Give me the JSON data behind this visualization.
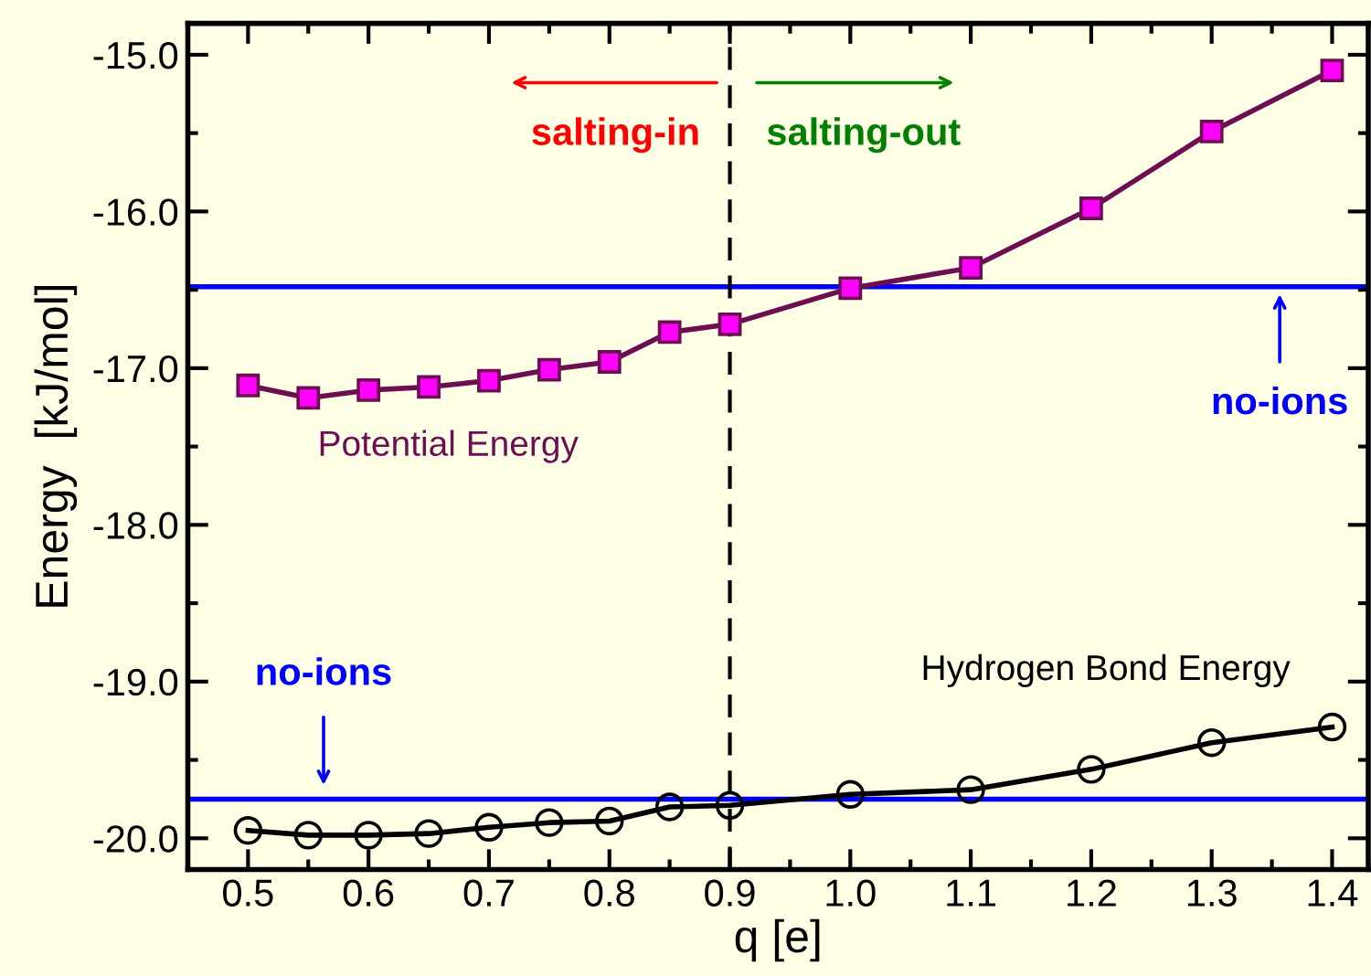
{
  "chart_data": {
    "type": "line",
    "xlabel": "q [e]",
    "ylabel": "Energy  [kJ/mol]",
    "x": [
      0.5,
      0.55,
      0.6,
      0.65,
      0.7,
      0.75,
      0.8,
      0.85,
      0.9,
      1.0,
      1.1,
      1.2,
      1.3,
      1.4
    ],
    "series": [
      {
        "name": "Potential Energy",
        "color": "#6e0e52",
        "marker": "square",
        "values": [
          -17.11,
          -17.19,
          -17.14,
          -17.12,
          -17.08,
          -17.01,
          -16.96,
          -16.77,
          -16.72,
          -16.49,
          -16.36,
          -15.98,
          -15.49,
          -15.1
        ]
      },
      {
        "name": "Hydrogen Bond Energy",
        "color": "#000000",
        "marker": "circle",
        "values": [
          -19.95,
          -19.98,
          -19.98,
          -19.97,
          -19.93,
          -19.9,
          -19.89,
          -19.8,
          -19.79,
          -19.72,
          -19.69,
          -19.56,
          -19.39,
          -19.29
        ]
      }
    ],
    "xlim": [
      0.45,
      1.43
    ],
    "xticks": [
      0.5,
      0.6,
      0.7,
      0.8,
      0.9,
      {
        "value": 1.0,
        "label": "1.0"
      },
      1.1,
      1.2,
      1.3,
      1.4
    ],
    "ylim": [
      -20.2,
      -14.8
    ],
    "yticks": [
      {
        "value": -20,
        "label": "-20.0"
      },
      {
        "value": -19,
        "label": "-19.0"
      },
      {
        "value": -18,
        "label": "-18.0"
      },
      {
        "value": -17,
        "label": "-17.0"
      },
      {
        "value": -16,
        "label": "-16.0"
      },
      {
        "value": -15,
        "label": "-15.0"
      }
    ],
    "ref_lines": [
      {
        "axis": "y",
        "value": -16.48,
        "label": "no-ions",
        "color": "#0000ff",
        "line_style": "solid"
      },
      {
        "axis": "y",
        "value": -19.75,
        "label": "no-ions",
        "color": "#0000ff",
        "line_style": "solid"
      },
      {
        "axis": "x",
        "value": 0.9,
        "color": "#000000",
        "line_style": "dashed"
      }
    ],
    "annotations": [
      "salting-in",
      "salting-out"
    ],
    "grid": false
  }
}
